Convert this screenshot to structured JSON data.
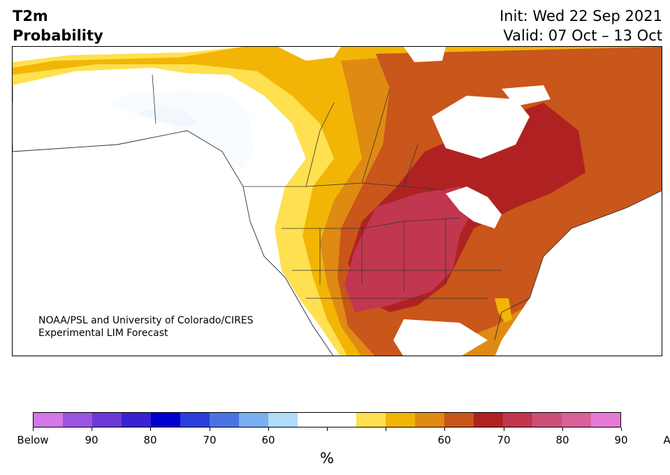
{
  "header": {
    "title_line1": "T2m",
    "title_line2": "Probability",
    "init_text": "Init: Wed 22 Sep 2021",
    "valid_text": "Valid: 07 Oct – 13 Oct"
  },
  "credit": {
    "line1": "NOAA/PSL and University of Colorado/CIRES",
    "line2": "Experimental LIM Forecast"
  },
  "colorbar": {
    "colors": [
      "#d278e8",
      "#9b55e0",
      "#6a3ad8",
      "#3a22d2",
      "#0000cf",
      "#2a3fdc",
      "#4a74e4",
      "#79aef0",
      "#b0dcfa",
      "#ffffff",
      "#ffffff",
      "#ffe050",
      "#f2b506",
      "#df8a12",
      "#c9561b",
      "#b02222",
      "#c1374f",
      "#cc4e77",
      "#d96098",
      "#e67ad8"
    ],
    "tick_labels": [
      "Below",
      "90",
      "80",
      "70",
      "60",
      "",
      "",
      "60",
      "70",
      "80",
      "90",
      "Above"
    ],
    "unit_label": "%"
  },
  "map": {
    "land_color": "#ffffff",
    "water_color": "#ffffff",
    "border_color": "#333333"
  }
}
